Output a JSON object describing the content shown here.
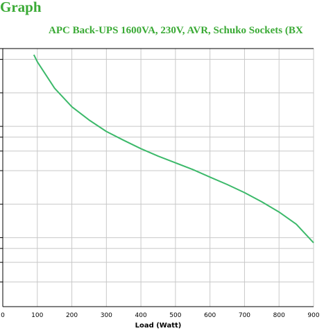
{
  "header": {
    "title": "Graph",
    "subtitle": "APC Back-UPS 1600VA, 230V, AVR, Schuko Sockets (BX"
  },
  "colors": {
    "title": "#3aaa35",
    "series": "#3cb96a",
    "grid": "#c8c8c8",
    "axis": "#000000"
  },
  "chart_data": {
    "type": "line",
    "title": "",
    "xlabel": "Load (Watt)",
    "ylabel": "",
    "xlim": [
      0,
      900
    ],
    "xticks": [
      0,
      100,
      200,
      300,
      400,
      500,
      600,
      700,
      800,
      900
    ],
    "ylog": true,
    "grid": true,
    "series": [
      {
        "name": "",
        "x": [
          90,
          100,
          150,
          200,
          250,
          300,
          350,
          400,
          450,
          500,
          550,
          600,
          650,
          700,
          750,
          800,
          850,
          900
        ],
        "y": [
          220,
          190,
          110,
          75,
          57,
          45,
          37.5,
          31.5,
          27,
          23.5,
          20.5,
          17.5,
          15,
          12.7,
          10.5,
          8.5,
          6.6,
          4.5
        ]
      }
    ]
  }
}
